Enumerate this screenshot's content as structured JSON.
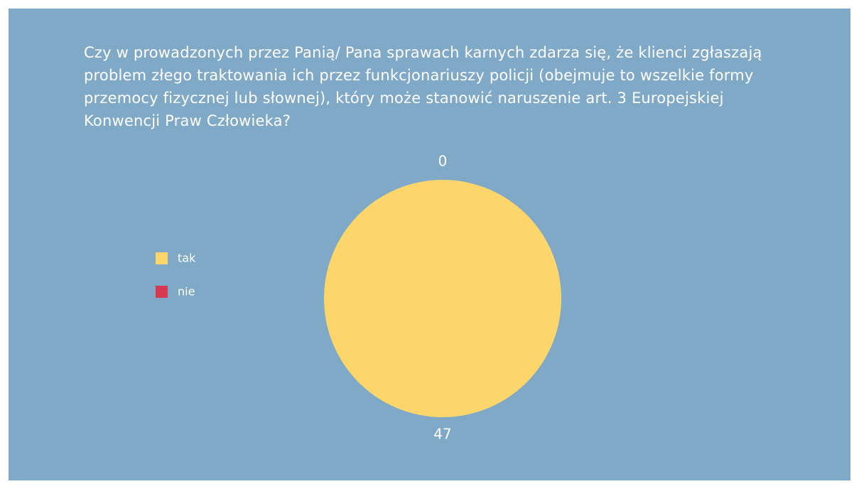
{
  "chart_data": {
    "type": "pie",
    "title": "Czy w prowadzonych przez Panią/ Pana sprawach karnych zdarza się, że klienci zgłaszają problem złego traktowania ich przez funkcjonariuszy policji (obejmuje to wszelkie formy przemocy fizycznej lub słownej), który może stanowić naruszenie art. 3 Europejskiej Konwencji Praw Człowieka?",
    "categories": [
      "tak",
      "nie"
    ],
    "values": [
      47,
      0
    ],
    "colors": [
      "#fcd66a",
      "#d63a50"
    ],
    "legend": "left"
  }
}
